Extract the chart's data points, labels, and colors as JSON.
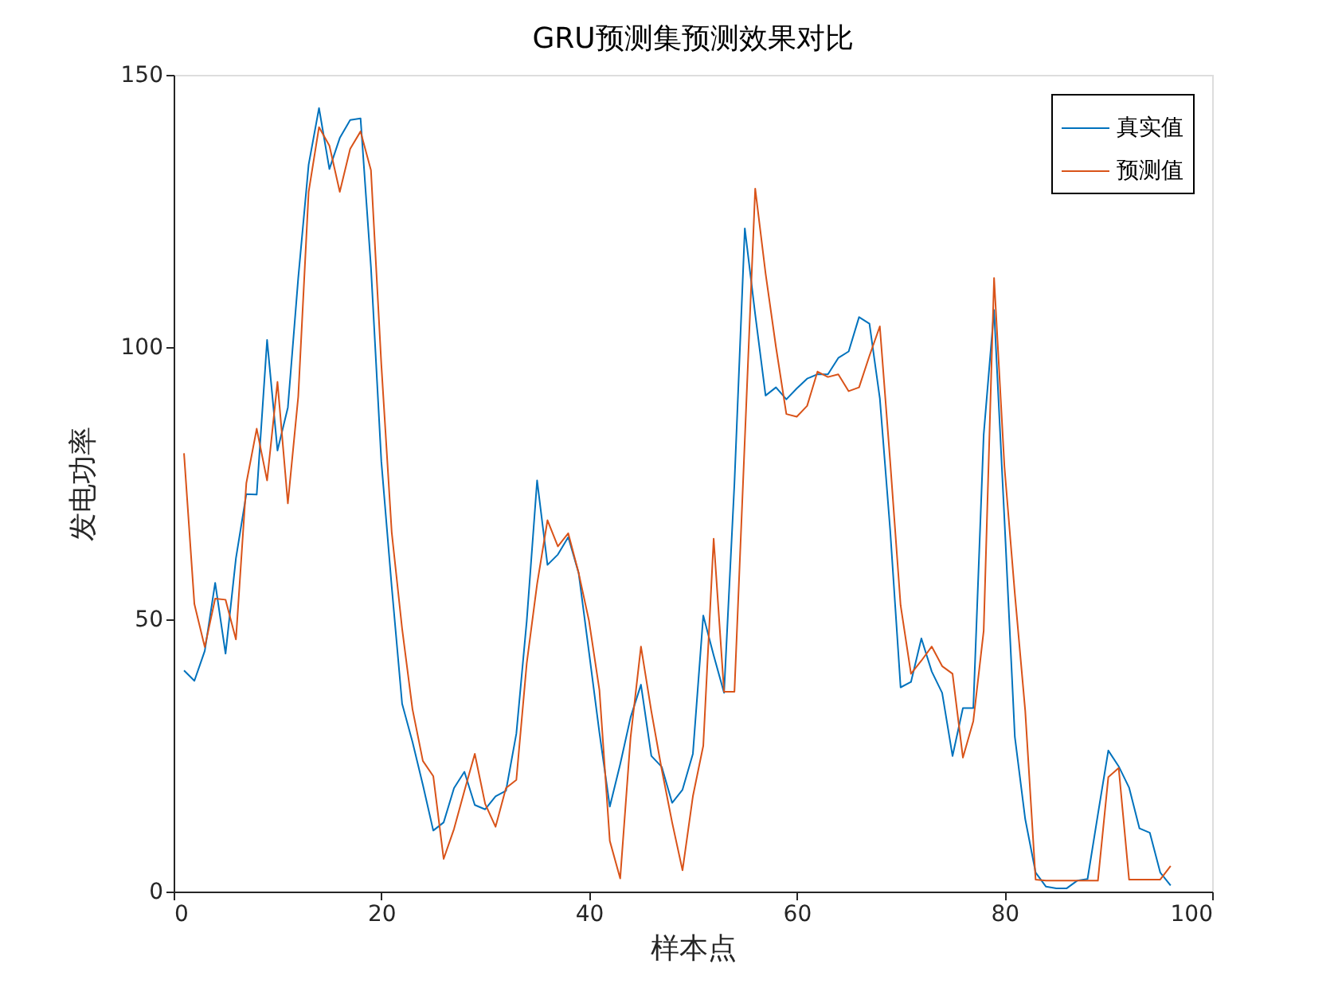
{
  "chart_data": {
    "type": "line",
    "title": "GRU预测集预测效果对比",
    "xlabel": "样本点",
    "ylabel": "发电功率",
    "x": [
      1,
      2,
      3,
      4,
      5,
      6,
      7,
      8,
      9,
      10,
      11,
      12,
      13,
      14,
      15,
      16,
      17,
      18,
      19,
      20,
      21,
      22,
      23,
      24,
      25,
      26,
      27,
      28,
      29,
      30,
      31,
      32,
      33,
      34,
      35,
      36,
      37,
      38,
      39,
      40,
      41,
      42,
      43,
      44,
      45,
      46,
      47,
      48,
      49,
      50,
      51,
      52,
      53,
      54,
      55,
      56,
      57,
      58,
      59,
      60,
      61,
      62,
      63,
      64,
      65,
      66,
      67,
      68,
      69,
      70,
      71,
      72,
      73,
      74,
      75,
      76,
      77,
      78,
      79,
      80,
      81,
      82,
      83,
      84,
      85,
      86,
      87,
      88,
      89,
      90,
      91,
      92,
      93,
      94,
      95,
      96
    ],
    "series": [
      {
        "name": "真实值",
        "color": "#0072bd",
        "values": [
          40.6,
          38.7,
          44.2,
          56.7,
          43.7,
          61.2,
          73,
          72.9,
          101.3,
          81,
          88.9,
          112.7,
          133.5,
          143.9,
          132.7,
          138.4,
          141.7,
          142,
          114.7,
          79,
          56,
          34.5,
          27.5,
          19.6,
          11.2,
          12.7,
          19,
          22,
          15.9,
          15.1,
          17.5,
          18.5,
          29,
          49.7,
          75.5,
          60,
          61.9,
          65.1,
          58.5,
          43.9,
          29.2,
          15.6,
          23.4,
          32,
          38,
          24.9,
          22.9,
          16.3,
          18.7,
          25.3,
          50.7,
          43.4,
          36.5,
          75,
          121.8,
          106,
          91.1,
          92.6,
          90.4,
          92.4,
          94.2,
          95,
          95,
          98,
          99.2,
          105.5,
          104.3,
          90.6,
          66.3,
          37.5,
          38.5,
          46.5,
          40.4,
          36.5,
          24.9,
          33.7,
          33.7,
          83.9,
          106.8,
          68.3,
          28.4,
          13.3,
          3.5,
          0.9,
          0.6,
          0.6,
          2,
          2.3,
          14.2,
          25.9,
          23,
          19.1,
          11.6,
          10.8,
          3.5,
          1.1
        ]
      },
      {
        "name": "预测值",
        "color": "#d95319",
        "values": [
          80.5,
          52.8,
          44.9,
          53.8,
          53.6,
          46.3,
          75,
          85,
          75.5,
          93.6,
          71.3,
          90.9,
          128.5,
          140.4,
          137,
          128.5,
          136.4,
          139.6,
          132.5,
          96.8,
          66,
          48.3,
          33.5,
          24,
          21.2,
          6,
          11.5,
          18.5,
          25.3,
          16.1,
          11.9,
          19,
          20.5,
          41.9,
          56.5,
          68.2,
          63.4,
          65.8,
          58.5,
          49.7,
          37,
          9.3,
          2.4,
          28.3,
          45,
          33.1,
          22.4,
          12.7,
          3.9,
          17.5,
          26.8,
          64.8,
          36.7,
          36.7,
          83,
          129.1,
          113.5,
          100,
          87.7,
          87.2,
          89.2,
          95.5,
          94.5,
          95,
          91.9,
          92.6,
          98.4,
          103.8,
          78.9,
          52.6,
          40,
          42.4,
          45,
          41.4,
          40,
          24.6,
          31.3,
          47.9,
          112.7,
          78,
          54.7,
          33.2,
          2.2,
          2,
          2,
          2,
          2,
          2,
          2,
          21,
          22.7,
          2.2,
          2.2,
          2.2,
          2.2,
          4.7
        ]
      }
    ],
    "xlim": [
      0,
      100
    ],
    "xticks": [
      0,
      20,
      40,
      60,
      80,
      100
    ],
    "ylim": [
      0,
      150
    ],
    "yticks": [
      0,
      50,
      100,
      150
    ],
    "legend": "top right"
  }
}
